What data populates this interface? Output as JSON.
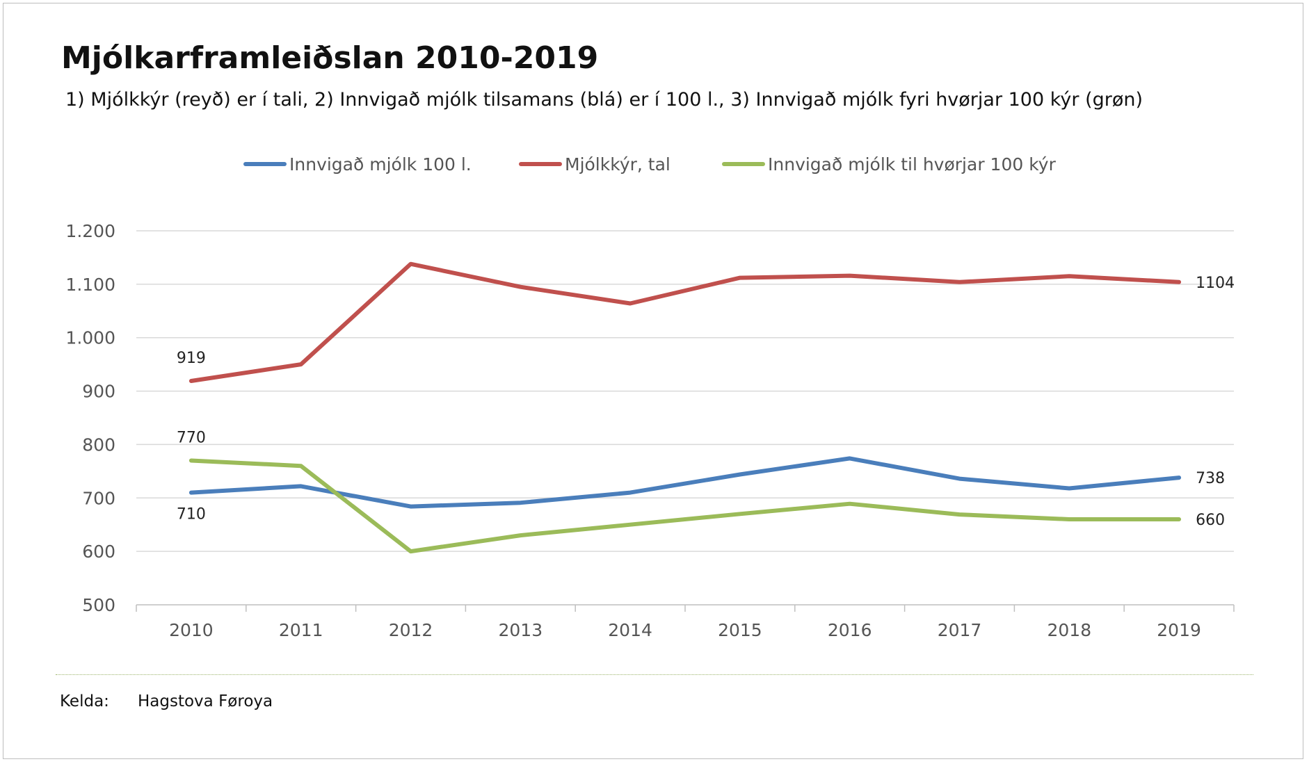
{
  "chart_data": {
    "type": "line",
    "title": "Mjólkarframleiðslan 2010-2019",
    "subtitle": "1) Mjólkkýr (reyð) er í tali, 2) Innvigað mjólk tilsamans (blá) er í 100 l., 3) Innvigað mjólk fyri hvørjar 100 kýr (grøn)",
    "xlabel": "",
    "ylabel": "",
    "categories": [
      "2010",
      "2011",
      "2012",
      "2013",
      "2014",
      "2015",
      "2016",
      "2017",
      "2018",
      "2019"
    ],
    "ylim": [
      500,
      1200
    ],
    "yticks": [
      {
        "value": 500,
        "label": "500"
      },
      {
        "value": 600,
        "label": "600"
      },
      {
        "value": 700,
        "label": "700"
      },
      {
        "value": 800,
        "label": "800"
      },
      {
        "value": 900,
        "label": "900"
      },
      {
        "value": 1000,
        "label": "1.000"
      },
      {
        "value": 1100,
        "label": "1.100"
      },
      {
        "value": 1200,
        "label": "1.200"
      }
    ],
    "grid": "horizontal",
    "legend_position": "top",
    "series": [
      {
        "name": "Innvigað mjólk 100 l.",
        "color": "#4a7ebb",
        "values": [
          710,
          722,
          684,
          691,
          710,
          744,
          774,
          736,
          718,
          738
        ],
        "labels": [
          {
            "index": 0,
            "text": "710",
            "position": "below"
          },
          {
            "index": 9,
            "text": "738",
            "position": "right"
          }
        ]
      },
      {
        "name": "Mjólkkýr, tal",
        "color": "#c0504d",
        "values": [
          919,
          950,
          1138,
          1095,
          1064,
          1112,
          1116,
          1104,
          1115,
          1104
        ],
        "labels": [
          {
            "index": 0,
            "text": "919",
            "position": "above"
          },
          {
            "index": 9,
            "text": "1104",
            "position": "right"
          }
        ]
      },
      {
        "name": "Innvigað mjólk til hvørjar 100 kýr",
        "color": "#9bbb59",
        "values": [
          770,
          760,
          600,
          630,
          650,
          670,
          689,
          669,
          660,
          660
        ],
        "labels": [
          {
            "index": 0,
            "text": "770",
            "position": "above"
          },
          {
            "index": 9,
            "text": "660",
            "position": "right"
          }
        ]
      }
    ]
  },
  "source": {
    "key": "Kelda:",
    "value": "Hagstova Føroya"
  }
}
